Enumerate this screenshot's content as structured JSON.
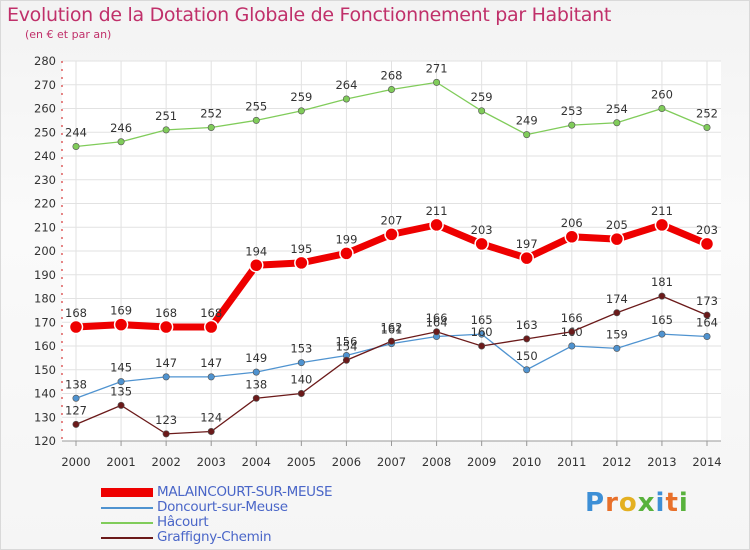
{
  "title": "Evolution de la Dotation Globale de Fonctionnement par Habitant",
  "subtitle": "(en € et par an)",
  "brand": {
    "text": "Proxiti",
    "letter_colors": [
      "#3d8fd6",
      "#e8702a",
      "#e4b021",
      "#58b23c",
      "#3d8fd6",
      "#e8702a",
      "#58b23c"
    ]
  },
  "chart_data": {
    "type": "line",
    "x": [
      "2000",
      "2001",
      "2002",
      "2003",
      "2004",
      "2005",
      "2006",
      "2007",
      "2008",
      "2009",
      "2010",
      "2011",
      "2012",
      "2013",
      "2014"
    ],
    "ylim": [
      120,
      280
    ],
    "yticks": [
      "120",
      "130",
      "140",
      "150",
      "160",
      "170",
      "180",
      "190",
      "200",
      "210",
      "220",
      "230",
      "240",
      "250",
      "260",
      "270",
      "280"
    ],
    "grid": true,
    "legend_position": "bottom-left",
    "series": [
      {
        "name": "MALAINCOURT-SUR-MEUSE",
        "color": "#ee0000",
        "emphasis": true,
        "values": [
          168,
          169,
          168,
          168,
          194,
          195,
          199,
          207,
          211,
          203,
          197,
          206,
          205,
          211,
          203
        ],
        "labels": [
          "168",
          "169",
          "168",
          "168",
          "194",
          "195",
          "199",
          "207",
          "211",
          "203",
          "197",
          "206",
          "205",
          "211",
          "203"
        ]
      },
      {
        "name": "Doncourt-sur-Meuse",
        "color": "#4f93d0",
        "emphasis": false,
        "values": [
          138,
          145,
          147,
          147,
          149,
          153,
          156,
          161,
          164,
          165,
          150,
          160,
          159,
          165,
          164
        ],
        "labels": [
          "138",
          "145",
          "147",
          "147",
          "149",
          "153",
          "156",
          "161",
          "164",
          "165",
          "150",
          "160",
          "159",
          "165",
          "164"
        ]
      },
      {
        "name": "Hâcourt",
        "color": "#80cc5a",
        "emphasis": false,
        "values": [
          244,
          246,
          251,
          252,
          255,
          259,
          264,
          268,
          271,
          259,
          249,
          253,
          254,
          260,
          252
        ],
        "labels": [
          "244",
          "246",
          "251",
          "252",
          "255",
          "259",
          "264",
          "268",
          "271",
          "259",
          "249",
          "253",
          "254",
          "260",
          "252"
        ]
      },
      {
        "name": "Graffigny-Chemin",
        "color": "#6b1a1a",
        "emphasis": false,
        "values": [
          127,
          135,
          123,
          124,
          138,
          140,
          154,
          162,
          166,
          160,
          163,
          166,
          174,
          181,
          173
        ],
        "labels": [
          "127",
          "135",
          "123",
          "124",
          "138",
          "140",
          "154",
          "162",
          "166",
          "160",
          "163",
          "166",
          "174",
          "181",
          "173"
        ]
      }
    ]
  }
}
